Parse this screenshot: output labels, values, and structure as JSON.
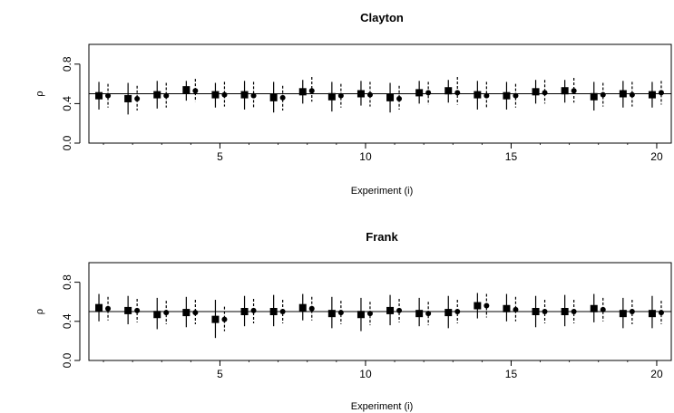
{
  "chart_data": [
    {
      "type": "scatter",
      "title": "Clayton",
      "xlabel": "Experiment (i)",
      "ylabel": "ρ",
      "xlim": [
        0.5,
        20.5
      ],
      "ylim": [
        0.0,
        1.0
      ],
      "reference_line": 0.5,
      "x_ticks": [
        "5",
        "10",
        "15",
        "20"
      ],
      "y_ticks": [
        "0.0",
        "0.4",
        "0.8"
      ],
      "x": [
        1,
        2,
        3,
        4,
        5,
        6,
        7,
        8,
        9,
        10,
        11,
        12,
        13,
        14,
        15,
        16,
        17,
        18,
        19,
        20
      ],
      "series": [
        {
          "marker": "square",
          "line": "solid",
          "values": [
            0.48,
            0.45,
            0.49,
            0.54,
            0.49,
            0.49,
            0.46,
            0.52,
            0.47,
            0.5,
            0.46,
            0.51,
            0.53,
            0.49,
            0.48,
            0.52,
            0.53,
            0.47,
            0.5,
            0.49
          ],
          "lower": [
            0.34,
            0.29,
            0.35,
            0.43,
            0.36,
            0.34,
            0.31,
            0.4,
            0.32,
            0.38,
            0.31,
            0.4,
            0.41,
            0.34,
            0.34,
            0.4,
            0.41,
            0.33,
            0.36,
            0.36
          ],
          "upper": [
            0.62,
            0.61,
            0.63,
            0.63,
            0.61,
            0.63,
            0.62,
            0.64,
            0.62,
            0.63,
            0.61,
            0.63,
            0.64,
            0.63,
            0.62,
            0.64,
            0.64,
            0.62,
            0.63,
            0.62
          ]
        },
        {
          "marker": "dot",
          "line": "dashed",
          "values": [
            0.48,
            0.45,
            0.48,
            0.53,
            0.49,
            0.48,
            0.46,
            0.53,
            0.48,
            0.49,
            0.45,
            0.51,
            0.51,
            0.48,
            0.48,
            0.51,
            0.53,
            0.49,
            0.49,
            0.51
          ],
          "lower": [
            0.36,
            0.33,
            0.36,
            0.42,
            0.37,
            0.36,
            0.33,
            0.42,
            0.36,
            0.37,
            0.34,
            0.39,
            0.39,
            0.36,
            0.36,
            0.4,
            0.41,
            0.37,
            0.37,
            0.39
          ],
          "upper": [
            0.6,
            0.58,
            0.61,
            0.65,
            0.62,
            0.62,
            0.58,
            0.67,
            0.6,
            0.62,
            0.58,
            0.62,
            0.67,
            0.62,
            0.6,
            0.64,
            0.66,
            0.61,
            0.62,
            0.63
          ]
        }
      ]
    },
    {
      "type": "scatter",
      "title": "Frank",
      "xlabel": "Experiment (i)",
      "ylabel": "ρ",
      "xlim": [
        0.5,
        20.5
      ],
      "ylim": [
        0.0,
        1.0
      ],
      "reference_line": 0.5,
      "x_ticks": [
        "5",
        "10",
        "15",
        "20"
      ],
      "y_ticks": [
        "0.0",
        "0.4",
        "0.8"
      ],
      "x": [
        1,
        2,
        3,
        4,
        5,
        6,
        7,
        8,
        9,
        10,
        11,
        12,
        13,
        14,
        15,
        16,
        17,
        18,
        19,
        20
      ],
      "series": [
        {
          "marker": "square",
          "line": "solid",
          "values": [
            0.54,
            0.51,
            0.47,
            0.49,
            0.42,
            0.5,
            0.5,
            0.54,
            0.48,
            0.47,
            0.51,
            0.48,
            0.49,
            0.56,
            0.53,
            0.5,
            0.5,
            0.53,
            0.48,
            0.48
          ],
          "lower": [
            0.4,
            0.37,
            0.32,
            0.34,
            0.23,
            0.35,
            0.35,
            0.41,
            0.33,
            0.3,
            0.36,
            0.35,
            0.33,
            0.43,
            0.4,
            0.34,
            0.35,
            0.39,
            0.33,
            0.33
          ],
          "upper": [
            0.68,
            0.66,
            0.64,
            0.65,
            0.62,
            0.66,
            0.67,
            0.68,
            0.65,
            0.64,
            0.67,
            0.64,
            0.66,
            0.69,
            0.68,
            0.66,
            0.67,
            0.68,
            0.64,
            0.66
          ]
        },
        {
          "marker": "dot",
          "line": "dashed",
          "values": [
            0.53,
            0.51,
            0.49,
            0.49,
            0.42,
            0.51,
            0.5,
            0.53,
            0.49,
            0.48,
            0.51,
            0.48,
            0.5,
            0.56,
            0.52,
            0.5,
            0.5,
            0.52,
            0.5,
            0.49
          ],
          "lower": [
            0.41,
            0.39,
            0.37,
            0.37,
            0.3,
            0.38,
            0.38,
            0.41,
            0.37,
            0.36,
            0.39,
            0.36,
            0.38,
            0.44,
            0.4,
            0.38,
            0.38,
            0.4,
            0.37,
            0.37
          ],
          "upper": [
            0.65,
            0.63,
            0.61,
            0.62,
            0.55,
            0.63,
            0.62,
            0.65,
            0.61,
            0.6,
            0.63,
            0.6,
            0.62,
            0.68,
            0.65,
            0.62,
            0.62,
            0.64,
            0.62,
            0.61
          ]
        }
      ]
    }
  ]
}
